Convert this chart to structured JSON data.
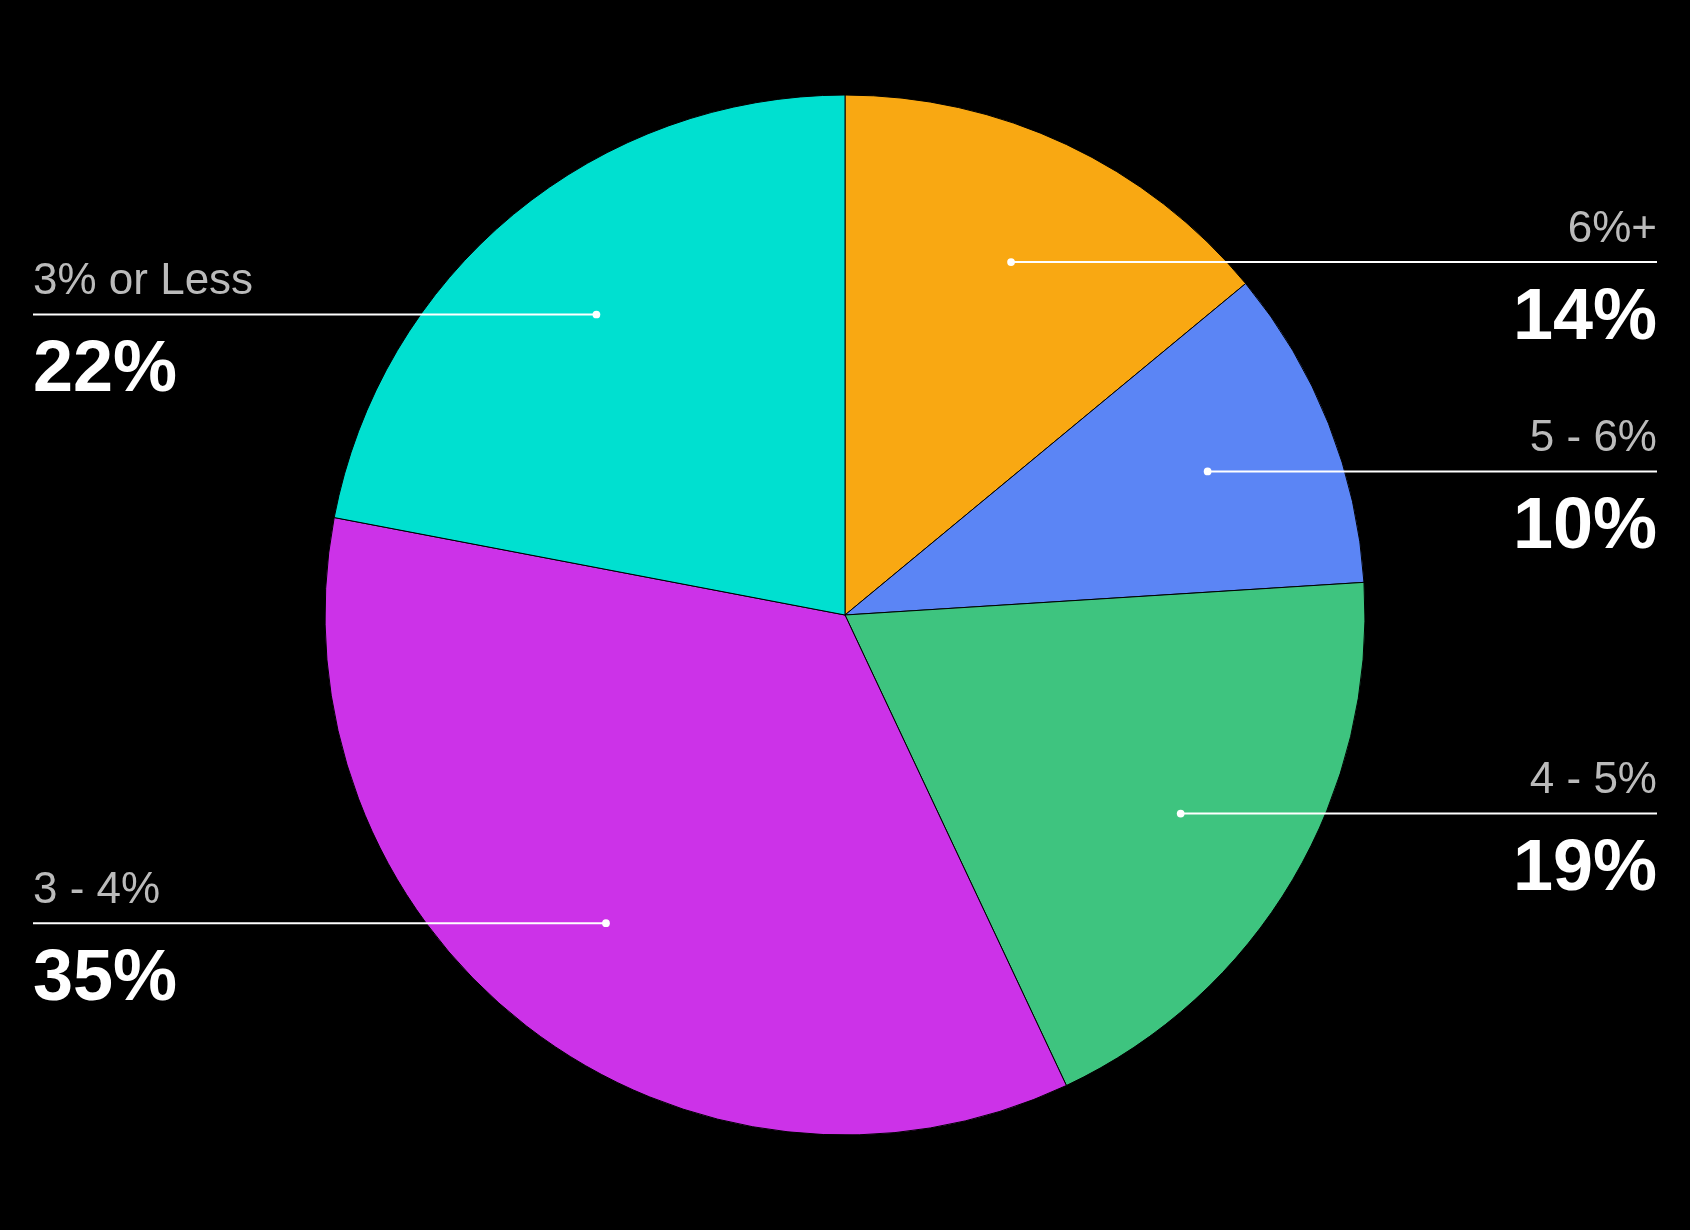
{
  "chart_data": {
    "type": "pie",
    "categories": [
      "6%+",
      "5 - 6%",
      "4 - 5%",
      "3 - 4%",
      "3% or Less"
    ],
    "values": [
      14,
      10,
      19,
      35,
      22
    ],
    "colors": [
      "#f9a812",
      "#5b85f5",
      "#3ec47f",
      "#cc32e8",
      "#00e0d0"
    ],
    "value_labels": [
      "14%",
      "10%",
      "19%",
      "35%",
      "22%"
    ]
  }
}
